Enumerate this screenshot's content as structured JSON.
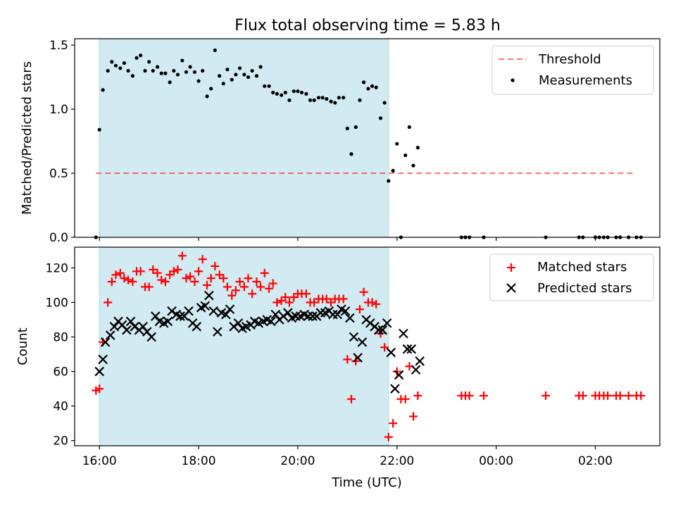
{
  "title": "Flux total observing time = 5.83 h",
  "colors": {
    "shade": "#add8e6",
    "threshold": "#ff0000",
    "matched": "#ff0000",
    "predicted": "#000000",
    "measurement": "#000000"
  },
  "chart_data": [
    {
      "type": "scatter",
      "ylabel": "Matched/Predicted stars",
      "xlim": [
        -0.5,
        11.3
      ],
      "ylim": [
        0,
        1.55
      ],
      "yticks": [
        0,
        0.5,
        1.0,
        1.5
      ],
      "ytick_labels": [
        "0.0",
        "0.5",
        "1.0",
        "1.5"
      ],
      "shaded_span_x": [
        0,
        5.83
      ],
      "legend_position": "upper right",
      "legend": [
        {
          "label": "Threshold",
          "marker": "dashed-line"
        },
        {
          "label": "Measurements",
          "marker": "dot"
        }
      ],
      "threshold": {
        "name": "Threshold",
        "y": 0.5,
        "x": [
          -0.07,
          10.8
        ]
      },
      "series": [
        {
          "name": "Measurements",
          "marker": "dot",
          "x": [
            -0.07,
            0.0,
            0.07,
            0.17,
            0.25,
            0.33,
            0.42,
            0.5,
            0.58,
            0.67,
            0.75,
            0.83,
            0.92,
            1.0,
            1.08,
            1.17,
            1.25,
            1.33,
            1.42,
            1.5,
            1.58,
            1.67,
            1.75,
            1.83,
            1.92,
            2.0,
            2.08,
            2.17,
            2.25,
            2.33,
            2.42,
            2.5,
            2.58,
            2.67,
            2.75,
            2.83,
            2.92,
            3.0,
            3.08,
            3.17,
            3.25,
            3.33,
            3.42,
            3.5,
            3.58,
            3.67,
            3.75,
            3.83,
            3.92,
            4.0,
            4.08,
            4.17,
            4.25,
            4.33,
            4.42,
            4.5,
            4.58,
            4.67,
            4.75,
            4.83,
            4.92,
            5.0,
            5.08,
            5.17,
            5.25,
            5.33,
            5.42,
            5.5,
            5.58,
            5.67,
            5.75,
            5.83,
            5.92,
            6.0,
            6.08,
            6.17,
            6.25,
            6.33,
            6.42,
            7.3,
            7.38,
            7.46,
            7.75,
            9.0,
            9.67,
            9.75,
            10.0,
            10.08,
            10.17,
            10.25,
            10.42,
            10.5,
            10.67,
            10.83,
            10.92
          ],
          "y": [
            0.0,
            0.84,
            1.15,
            1.3,
            1.37,
            1.34,
            1.32,
            1.36,
            1.3,
            1.26,
            1.4,
            1.42,
            1.3,
            1.37,
            1.3,
            1.33,
            1.28,
            1.28,
            1.21,
            1.3,
            1.27,
            1.38,
            1.29,
            1.33,
            1.29,
            1.22,
            1.3,
            1.1,
            1.16,
            1.46,
            1.26,
            1.2,
            1.31,
            1.23,
            1.27,
            1.32,
            1.27,
            1.25,
            1.3,
            1.26,
            1.33,
            1.18,
            1.18,
            1.13,
            1.12,
            1.11,
            1.13,
            1.07,
            1.14,
            1.14,
            1.13,
            1.12,
            1.07,
            1.07,
            1.09,
            1.09,
            1.08,
            1.06,
            1.05,
            1.09,
            1.09,
            0.85,
            0.65,
            0.86,
            1.07,
            1.21,
            1.16,
            1.18,
            1.17,
            0.93,
            1.05,
            0.44,
            0.52,
            0.73,
            0.0,
            0.64,
            0.86,
            0.56,
            0.7,
            0.0,
            0.0,
            0.0,
            0.0,
            0.0,
            0.0,
            0.0,
            0.0,
            0.0,
            0.0,
            0.0,
            0.0,
            0.0,
            0.0,
            0.0,
            0.0
          ]
        }
      ]
    },
    {
      "type": "scatter",
      "xlabel": "Time (UTC)",
      "ylabel": "Count",
      "xlim": [
        -0.5,
        11.3
      ],
      "ylim": [
        17,
        132
      ],
      "yticks": [
        20,
        40,
        60,
        80,
        100,
        120
      ],
      "xtick_positions": [
        0,
        2,
        4,
        6,
        8,
        10
      ],
      "categories": [
        "16:00",
        "18:00",
        "20:00",
        "22:00",
        "00:00",
        "02:00"
      ],
      "shaded_span_x": [
        0,
        5.83
      ],
      "legend_position": "upper right",
      "legend": [
        {
          "label": "Matched stars",
          "marker": "plus"
        },
        {
          "label": "Predicted stars",
          "marker": "cross"
        }
      ],
      "series": [
        {
          "name": "Matched stars",
          "marker": "plus",
          "x": [
            -0.07,
            0.0,
            0.07,
            0.17,
            0.25,
            0.33,
            0.42,
            0.5,
            0.58,
            0.67,
            0.75,
            0.83,
            0.92,
            1.0,
            1.08,
            1.17,
            1.25,
            1.33,
            1.42,
            1.5,
            1.58,
            1.67,
            1.75,
            1.83,
            1.92,
            2.0,
            2.08,
            2.17,
            2.25,
            2.33,
            2.42,
            2.5,
            2.58,
            2.67,
            2.75,
            2.83,
            2.92,
            3.0,
            3.08,
            3.17,
            3.25,
            3.33,
            3.42,
            3.5,
            3.58,
            3.67,
            3.75,
            3.83,
            3.92,
            4.0,
            4.08,
            4.17,
            4.25,
            4.33,
            4.42,
            4.5,
            4.58,
            4.67,
            4.75,
            4.83,
            4.92,
            5.0,
            5.08,
            5.17,
            5.25,
            5.33,
            5.42,
            5.5,
            5.58,
            5.67,
            5.75,
            5.83,
            5.92,
            6.0,
            6.08,
            6.17,
            6.25,
            6.33,
            6.42,
            7.3,
            7.38,
            7.46,
            7.75,
            9.0,
            9.67,
            9.75,
            10.0,
            10.08,
            10.17,
            10.25,
            10.42,
            10.5,
            10.67,
            10.83,
            10.92
          ],
          "y": [
            49,
            50,
            77,
            100,
            112,
            116,
            117,
            114,
            113,
            112,
            118,
            118,
            109,
            109,
            119,
            117,
            113,
            112,
            116,
            118,
            119,
            127,
            114,
            115,
            112,
            118,
            125,
            110,
            114,
            121,
            116,
            114,
            109,
            104,
            107,
            112,
            109,
            114,
            105,
            112,
            109,
            117,
            108,
            111,
            100,
            101,
            103,
            100,
            103,
            105,
            105,
            105,
            100,
            100,
            102,
            102,
            102,
            100,
            102,
            102,
            102,
            67,
            44,
            66,
            96,
            106,
            100,
            100,
            99,
            82,
            74,
            22,
            30,
            60,
            44,
            44,
            63,
            34,
            46,
            46,
            46,
            46,
            46,
            46,
            46,
            46,
            46,
            46,
            46,
            46,
            46,
            46,
            46,
            46,
            46
          ]
        },
        {
          "name": "Predicted stars",
          "marker": "cross",
          "x": [
            0.0,
            0.07,
            0.12,
            0.22,
            0.3,
            0.38,
            0.46,
            0.55,
            0.63,
            0.71,
            0.8,
            0.88,
            0.96,
            1.05,
            1.13,
            1.21,
            1.3,
            1.38,
            1.46,
            1.55,
            1.63,
            1.71,
            1.8,
            1.88,
            1.96,
            2.05,
            2.13,
            2.21,
            2.3,
            2.38,
            2.46,
            2.55,
            2.63,
            2.71,
            2.8,
            2.88,
            2.96,
            3.05,
            3.13,
            3.21,
            3.3,
            3.38,
            3.46,
            3.55,
            3.63,
            3.71,
            3.8,
            3.88,
            3.96,
            4.05,
            4.13,
            4.21,
            4.3,
            4.38,
            4.46,
            4.55,
            4.63,
            4.71,
            4.8,
            4.88,
            4.96,
            5.05,
            5.13,
            5.21,
            5.3,
            5.38,
            5.46,
            5.55,
            5.63,
            5.71,
            5.8,
            5.88,
            5.96,
            6.04,
            6.13,
            6.21,
            6.29,
            6.38,
            6.46
          ],
          "y": [
            60,
            67,
            77,
            81,
            86,
            89,
            87,
            84,
            89,
            86,
            84,
            86,
            83,
            80,
            92,
            89,
            88,
            89,
            95,
            93,
            92,
            92,
            95,
            88,
            86,
            97,
            98,
            104,
            95,
            83,
            94,
            93,
            96,
            86,
            88,
            85,
            86,
            87,
            89,
            88,
            89,
            90,
            89,
            93,
            90,
            92,
            94,
            91,
            92,
            92,
            93,
            92,
            92,
            92,
            94,
            94,
            95,
            93,
            93,
            96,
            95,
            91,
            80,
            68,
            77,
            90,
            88,
            86,
            84,
            84,
            88,
            71,
            50,
            58,
            82,
            73,
            73,
            61,
            66
          ]
        }
      ]
    }
  ]
}
